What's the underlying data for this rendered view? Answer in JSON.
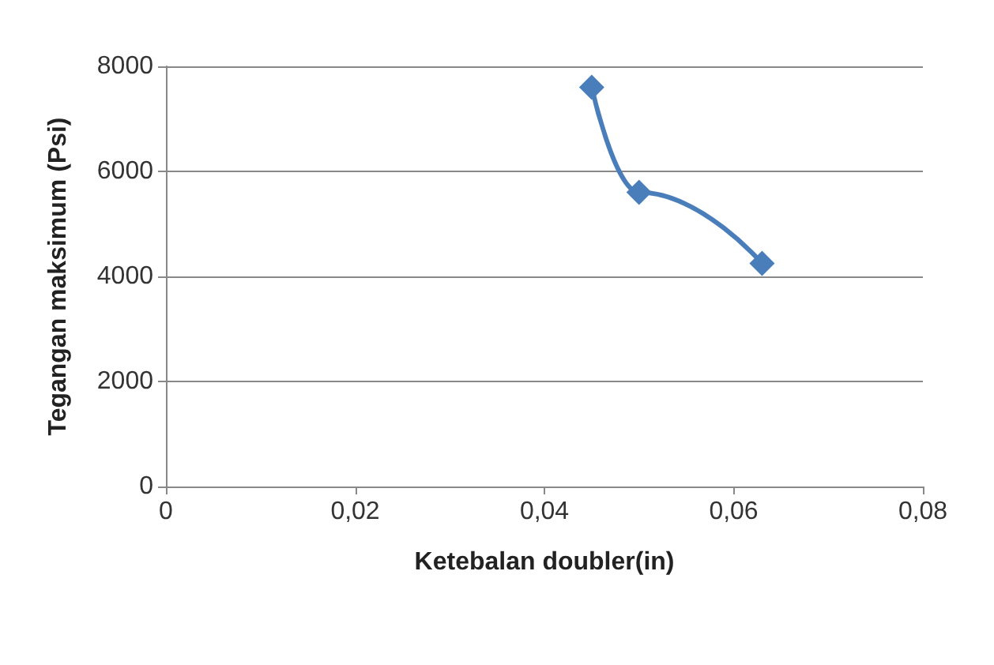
{
  "chart_data": {
    "type": "line",
    "xlabel": "Ketebalan doubler(in)",
    "ylabel": "Tegangan maksimum (Psi)",
    "x": [
      0.045,
      0.05,
      0.063
    ],
    "series": [
      {
        "color": "#4a7ebb",
        "values": [
          7600,
          5600,
          4250
        ]
      }
    ],
    "xlim": [
      0,
      0.08
    ],
    "xticks": [
      {
        "value": 0,
        "label": "0"
      },
      {
        "value": 0.02,
        "label": "0,02"
      },
      {
        "value": 0.04,
        "label": "0,04"
      },
      {
        "value": 0.06,
        "label": "0,06"
      },
      {
        "value": 0.08,
        "label": "0,08"
      }
    ],
    "ylim": [
      0,
      8000
    ],
    "yticks": [
      0,
      2000,
      4000,
      6000,
      8000
    ],
    "grid": "y",
    "marker": "diamond",
    "line_style": "solid"
  }
}
